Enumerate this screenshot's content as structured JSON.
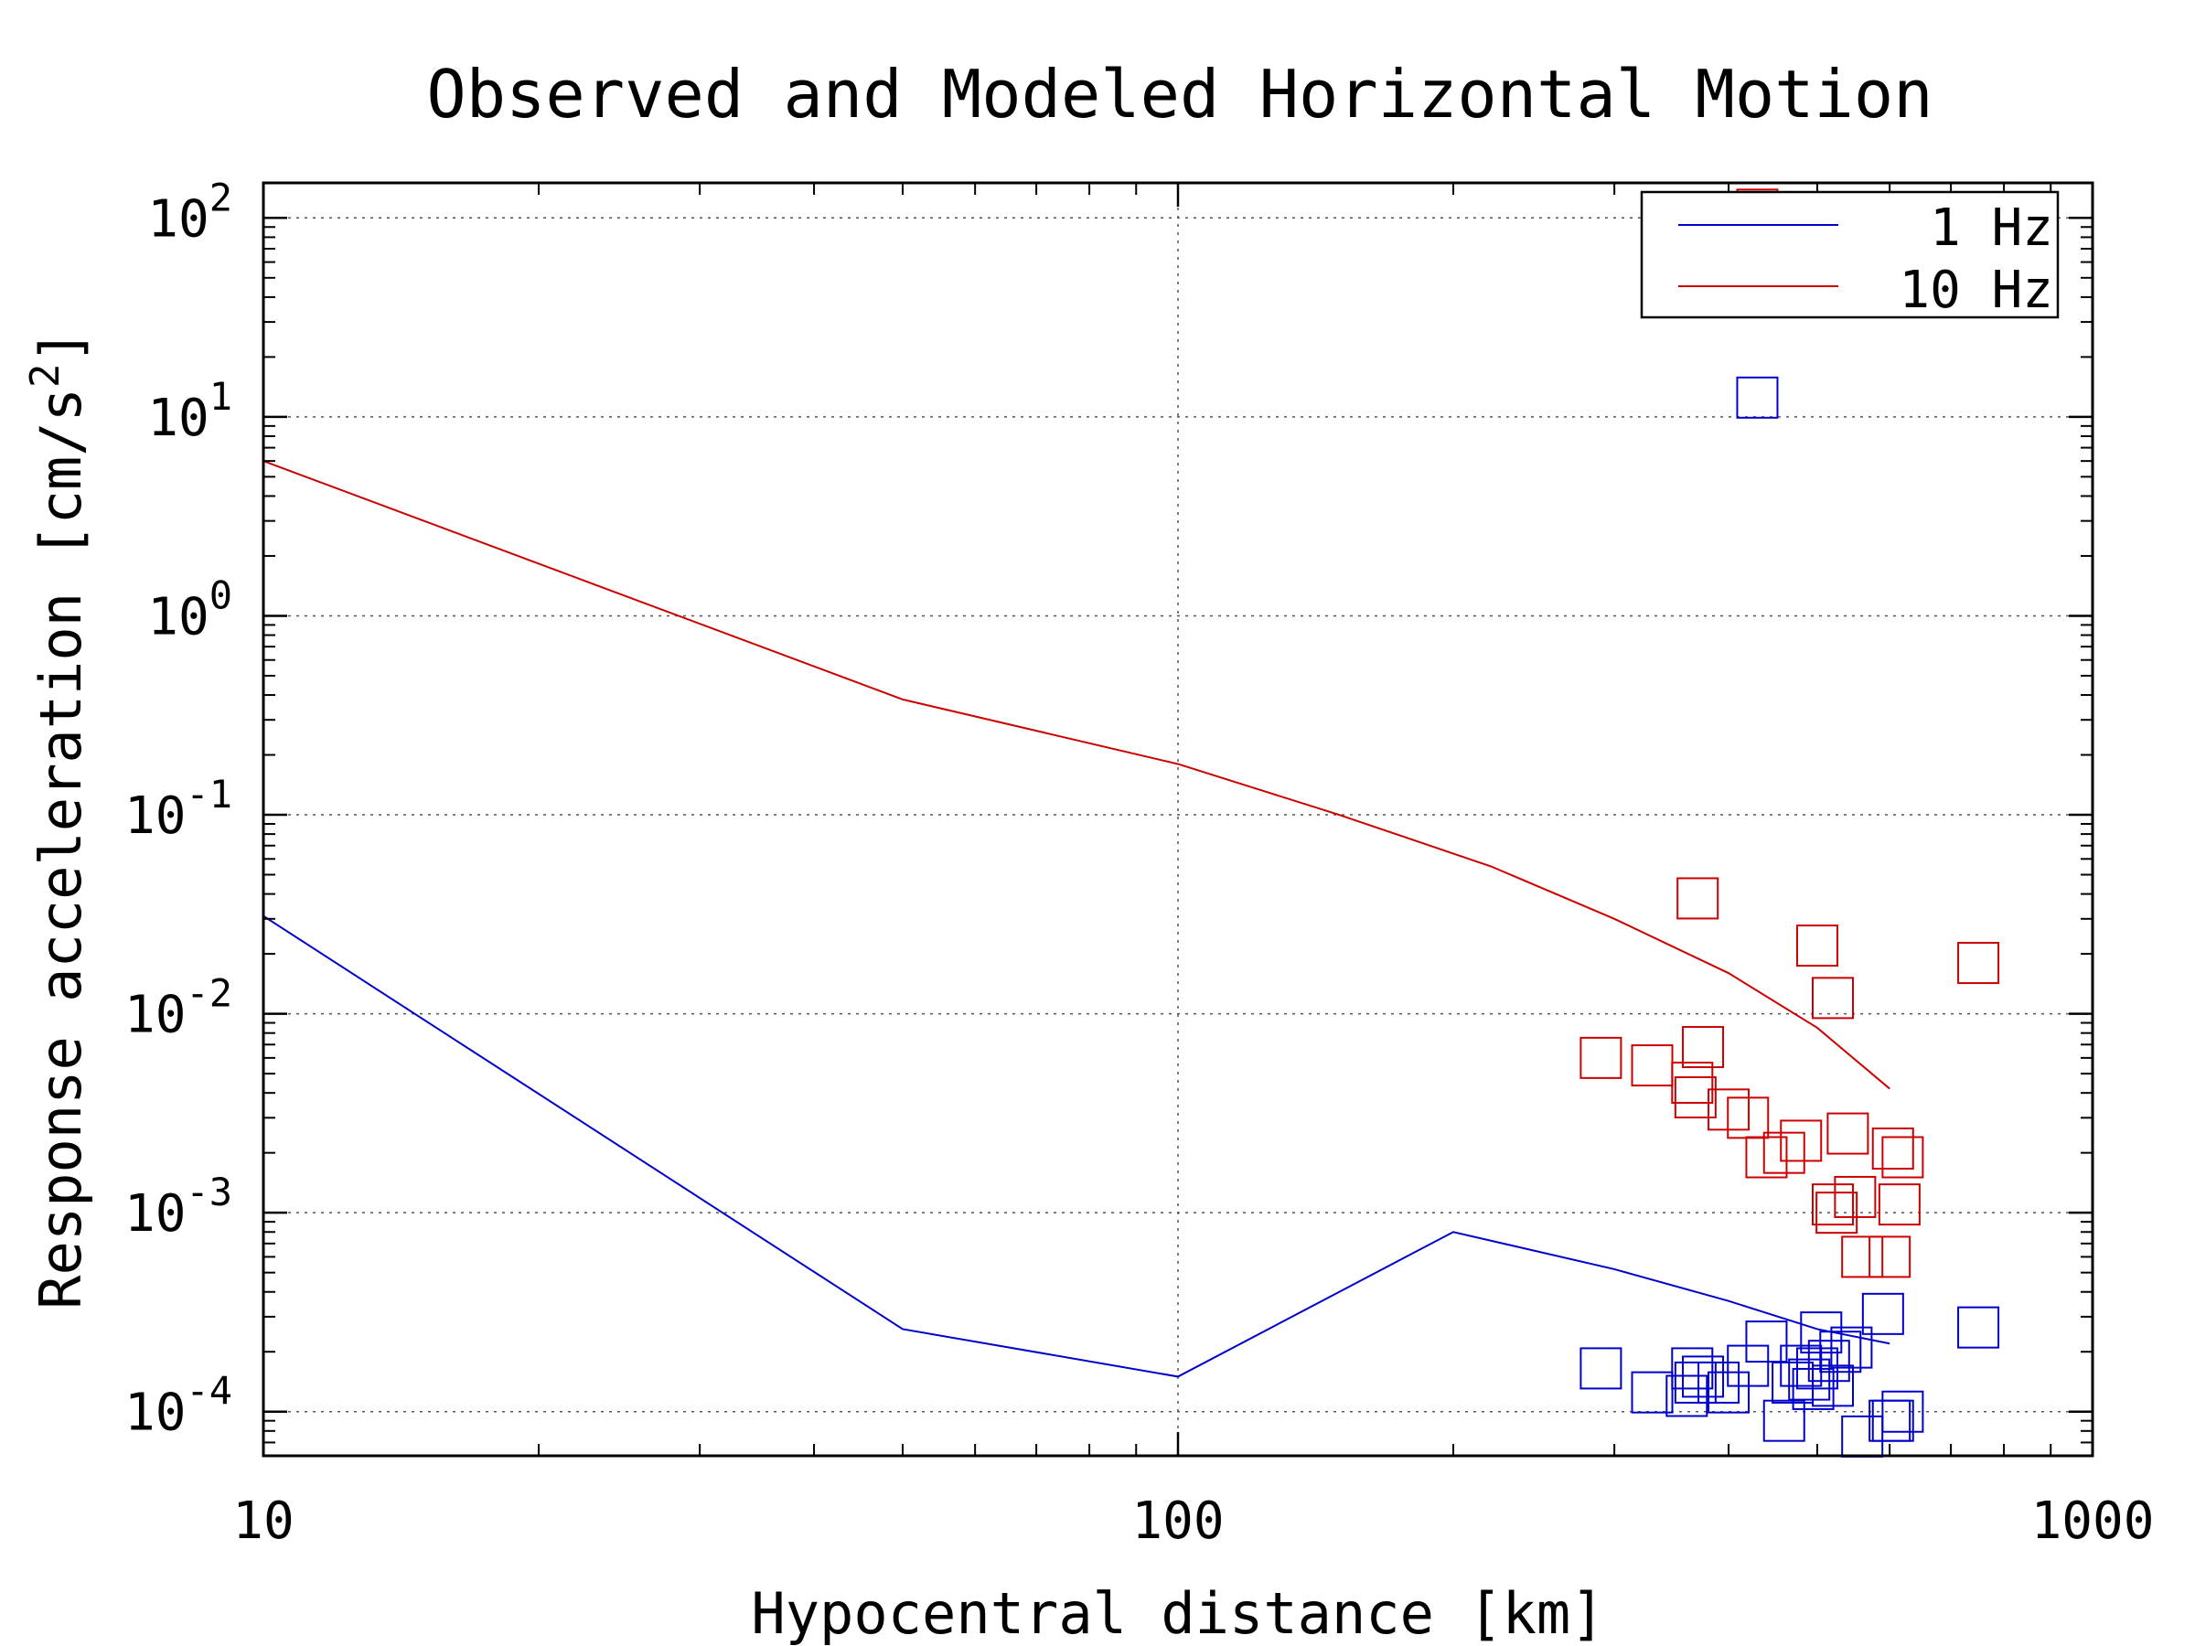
{
  "chart_data": {
    "type": "scatter",
    "title": "Observed and Modeled Horizontal Motion",
    "xlabel": "Hypocentral distance [km]",
    "ylabel_main": "Response acceleration [cm/s",
    "ylabel_sup": "2",
    "ylabel_end": "]",
    "xscale": "log",
    "yscale": "log",
    "xlim": [
      10,
      1000
    ],
    "ylim": [
      6e-05,
      150
    ],
    "grid": true,
    "legend_position": "top-right",
    "x_ticks": [
      {
        "value": 10,
        "label": "10"
      },
      {
        "value": 100,
        "label": "100"
      },
      {
        "value": 1000,
        "label": "1000"
      }
    ],
    "y_ticks": [
      {
        "value": 0.0001,
        "base": "10",
        "exp": "-4"
      },
      {
        "value": 0.001,
        "base": "10",
        "exp": "-3"
      },
      {
        "value": 0.01,
        "base": "10",
        "exp": "-2"
      },
      {
        "value": 0.1,
        "base": "10",
        "exp": "-1"
      },
      {
        "value": 1,
        "base": "10",
        "exp": "0"
      },
      {
        "value": 10,
        "base": "10",
        "exp": "1"
      },
      {
        "value": 100,
        "base": "10",
        "exp": "2"
      }
    ],
    "series": [
      {
        "name": "1 Hz",
        "color": "#0000cc",
        "model_line": [
          [
            10,
            0.031
          ],
          [
            50,
            0.00026
          ],
          [
            100,
            0.00015
          ],
          [
            200,
            0.0008
          ],
          [
            300,
            0.00052
          ],
          [
            400,
            0.00036
          ],
          [
            500,
            0.00026
          ],
          [
            600,
            0.00022
          ]
        ],
        "observations": [
          [
            290,
            0.000165
          ],
          [
            330,
            0.000125
          ],
          [
            360,
            0.00012
          ],
          [
            365,
            0.000165
          ],
          [
            368,
            0.00014
          ],
          [
            375,
            0.00015
          ],
          [
            390,
            0.00014
          ],
          [
            400,
            0.000125
          ],
          [
            420,
            0.00017
          ],
          [
            440,
            0.000225
          ],
          [
            460,
            9e-05
          ],
          [
            470,
            0.00014
          ],
          [
            480,
            0.00017
          ],
          [
            490,
            0.000145
          ],
          [
            495,
            0.00013
          ],
          [
            500,
            0.000165
          ],
          [
            505,
            0.00025
          ],
          [
            515,
            0.00018
          ],
          [
            520,
            0.000135
          ],
          [
            530,
            0.0002
          ],
          [
            545,
            0.00021
          ],
          [
            560,
            7.5e-05
          ],
          [
            590,
            0.00031
          ],
          [
            600,
            9e-05
          ],
          [
            605,
            9e-05
          ],
          [
            620,
            0.0001
          ],
          [
            750,
            0.000265
          ],
          [
            430,
            12.5
          ]
        ]
      },
      {
        "name": "10 Hz",
        "color": "#cc0000",
        "model_line": [
          [
            10,
            6
          ],
          [
            50,
            0.38
          ],
          [
            100,
            0.18
          ],
          [
            150,
            0.1
          ],
          [
            220,
            0.055
          ],
          [
            300,
            0.03
          ],
          [
            400,
            0.016
          ],
          [
            500,
            0.0085
          ],
          [
            600,
            0.0042
          ]
        ],
        "observations": [
          [
            290,
            0.006
          ],
          [
            330,
            0.0055
          ],
          [
            370,
            0.038
          ],
          [
            365,
            0.0045
          ],
          [
            368,
            0.0038
          ],
          [
            375,
            0.0068
          ],
          [
            400,
            0.0033
          ],
          [
            420,
            0.003
          ],
          [
            440,
            0.0019
          ],
          [
            460,
            0.002
          ],
          [
            480,
            0.0023
          ],
          [
            500,
            0.022
          ],
          [
            520,
            0.012
          ],
          [
            520,
            0.0011
          ],
          [
            525,
            0.001
          ],
          [
            540,
            0.0025
          ],
          [
            550,
            0.0012
          ],
          [
            560,
            0.0006
          ],
          [
            600,
            0.0006
          ],
          [
            605,
            0.0021
          ],
          [
            615,
            0.0011
          ],
          [
            620,
            0.0019
          ],
          [
            750,
            0.018
          ],
          [
            430,
            110
          ]
        ]
      }
    ]
  }
}
